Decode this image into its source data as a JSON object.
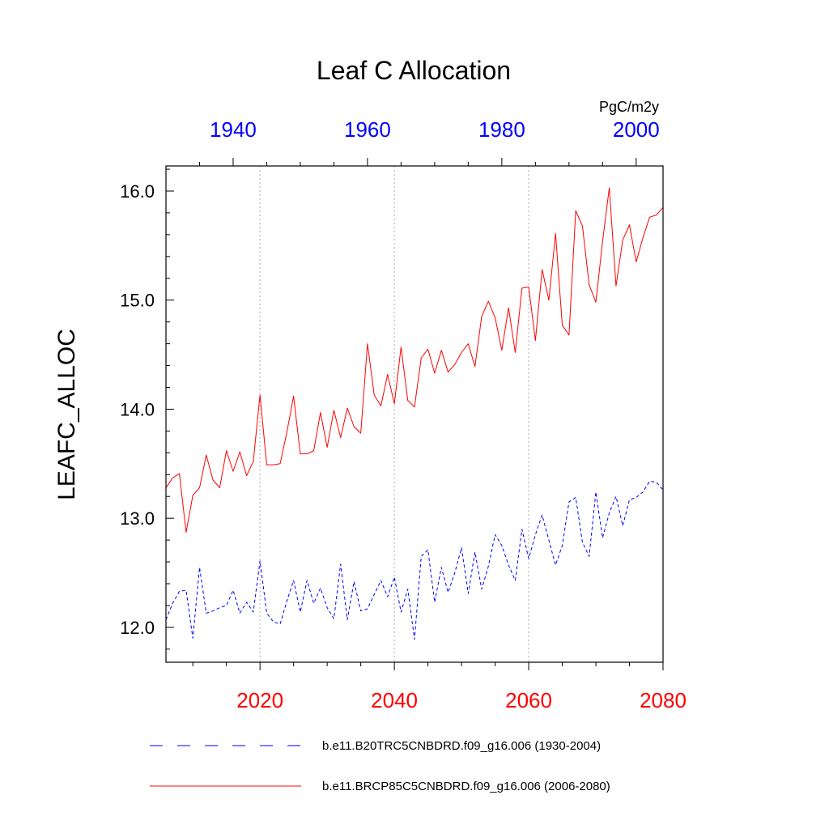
{
  "chart_data": {
    "type": "line",
    "title": "Leaf C Allocation",
    "units": "PgC/m2y",
    "ylabel": "LEAFC_ALLOC",
    "ylim": [
      11.68,
      16.23
    ],
    "yticks": [
      12.0,
      13.0,
      14.0,
      15.0,
      16.0
    ],
    "ytick_labels": [
      "12.0",
      "13.0",
      "14.0",
      "15.0",
      "16.0"
    ],
    "grid": "vertical dotted at major bottom ticks",
    "x_bottom": {
      "range": [
        2006,
        2080
      ],
      "ticks": [
        2020,
        2040,
        2060,
        2080
      ],
      "tick_labels": [
        "2020",
        "2040",
        "2060",
        "2080"
      ],
      "color": "#ff0000"
    },
    "x_top": {
      "range": [
        1930,
        2004
      ],
      "ticks": [
        1940,
        1960,
        1980,
        2000
      ],
      "tick_labels": [
        "1940",
        "1960",
        "1980",
        "2000"
      ],
      "color": "#0000ff"
    },
    "series": [
      {
        "name": "b.e11.B20TRC5CNBDRD.f09_g16.006 (1930-2004)",
        "axis": "top",
        "color": "#0000ff",
        "style": "dashed",
        "x_start": 1930,
        "values": [
          12.07,
          12.22,
          12.33,
          12.34,
          11.9,
          12.55,
          12.13,
          12.15,
          12.18,
          12.2,
          12.34,
          12.13,
          12.23,
          12.14,
          12.61,
          12.13,
          12.05,
          12.03,
          12.24,
          12.43,
          12.14,
          12.43,
          12.22,
          12.36,
          12.18,
          12.08,
          12.58,
          12.07,
          12.42,
          12.15,
          12.17,
          12.3,
          12.43,
          12.28,
          12.46,
          12.14,
          12.35,
          11.89,
          12.65,
          12.71,
          12.23,
          12.55,
          12.32,
          12.5,
          12.73,
          12.31,
          12.69,
          12.35,
          12.56,
          12.85,
          12.75,
          12.57,
          12.43,
          12.9,
          12.63,
          12.85,
          13.03,
          12.8,
          12.57,
          12.75,
          13.15,
          13.19,
          12.78,
          12.65,
          13.24,
          12.82,
          13.05,
          13.2,
          12.93,
          13.17,
          13.19,
          13.24,
          13.34,
          13.33,
          13.26
        ]
      },
      {
        "name": "b.e11.BRCP85C5CNBDRD.f09_g16.006 (2006-2080)",
        "axis": "bottom",
        "color": "#ff0000",
        "style": "solid",
        "x_start": 2006,
        "values": [
          13.28,
          13.37,
          13.41,
          12.87,
          13.21,
          13.28,
          13.58,
          13.35,
          13.28,
          13.62,
          13.43,
          13.61,
          13.39,
          13.52,
          14.13,
          13.49,
          13.49,
          13.5,
          13.79,
          14.12,
          13.59,
          13.59,
          13.62,
          13.97,
          13.65,
          13.99,
          13.74,
          14.01,
          13.84,
          13.78,
          14.6,
          14.13,
          14.03,
          14.32,
          14.05,
          14.57,
          14.08,
          14.02,
          14.47,
          14.55,
          14.33,
          14.54,
          14.34,
          14.41,
          14.52,
          14.6,
          14.39,
          14.85,
          14.99,
          14.84,
          14.54,
          14.93,
          14.52,
          15.11,
          15.12,
          14.63,
          15.28,
          15.0,
          15.61,
          14.77,
          14.68,
          15.82,
          15.68,
          15.14,
          14.98,
          15.54,
          16.03,
          15.13,
          15.55,
          15.69,
          15.35,
          15.57,
          15.76,
          15.78,
          15.85
        ]
      }
    ]
  }
}
